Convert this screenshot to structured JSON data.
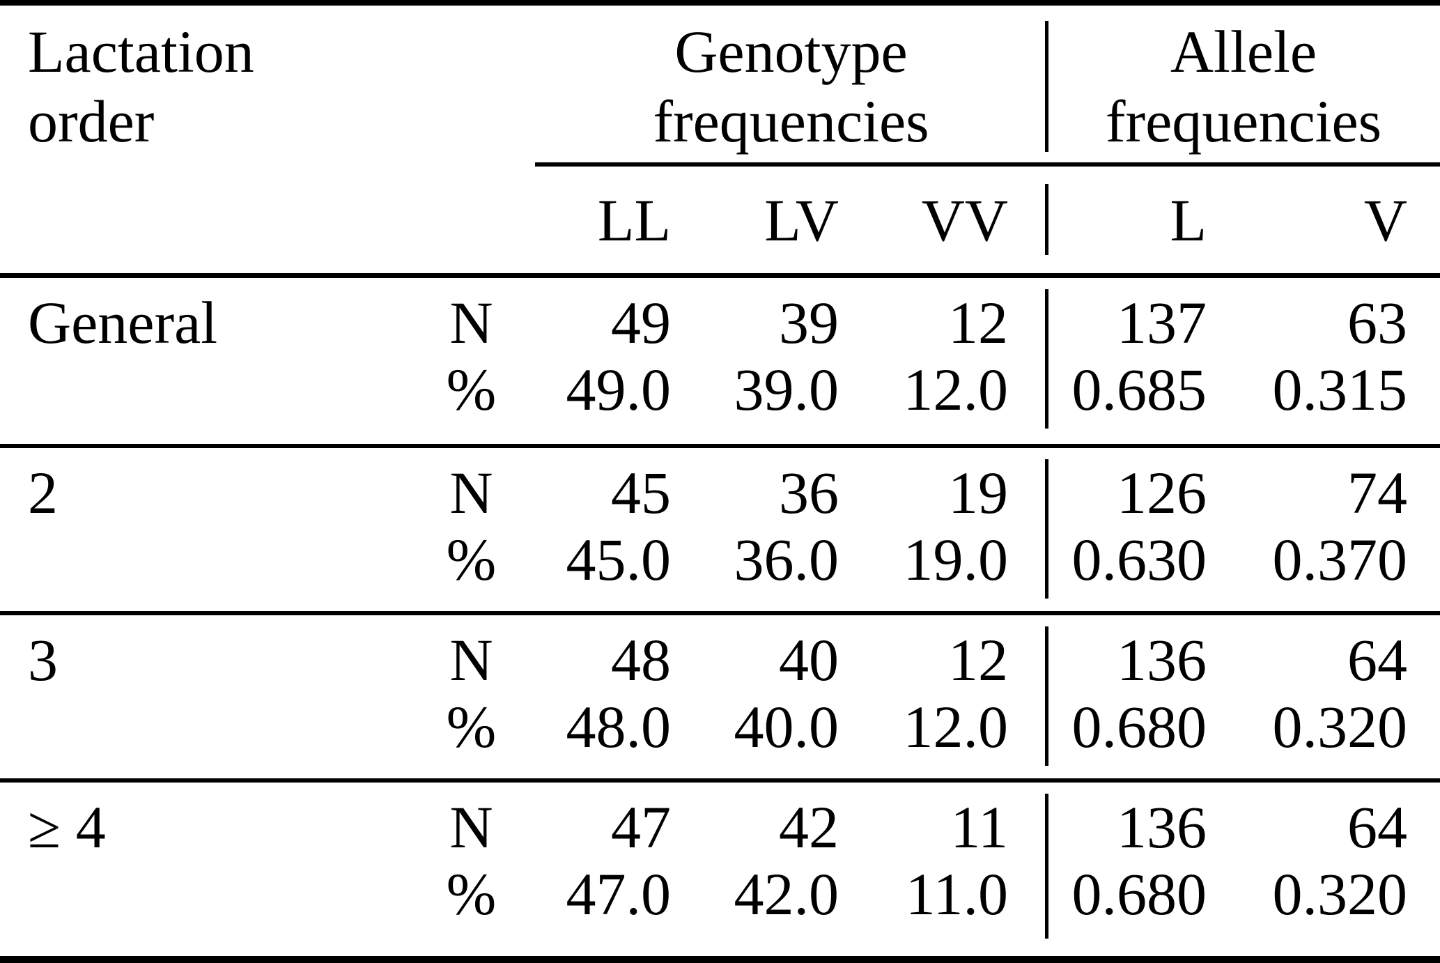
{
  "colors": {
    "text": "#000000",
    "background": "#ffffff",
    "rules": "#000000"
  },
  "table": {
    "stub_header": {
      "line1": "Lactation",
      "line2": "order"
    },
    "group_headers": {
      "genotype": {
        "line1": "Genotype",
        "line2": "frequencies"
      },
      "allele": {
        "line1": "Allele",
        "line2": "frequencies"
      }
    },
    "columns": {
      "genotype": [
        "LL",
        "LV",
        "VV"
      ],
      "allele": [
        "L",
        "V"
      ]
    },
    "stub_labels": {
      "n": "N",
      "pct": "%"
    },
    "rows": [
      {
        "label": "General",
        "n": [
          "49",
          "39",
          "12",
          "137",
          "63"
        ],
        "pct": [
          "49.0",
          "39.0",
          "12.0",
          "0.685",
          "0.315"
        ]
      },
      {
        "label": "2",
        "n": [
          "45",
          "36",
          "19",
          "126",
          "74"
        ],
        "pct": [
          "45.0",
          "36.0",
          "19.0",
          "0.630",
          "0.370"
        ]
      },
      {
        "label": "3",
        "n": [
          "48",
          "40",
          "12",
          "136",
          "64"
        ],
        "pct": [
          "48.0",
          "40.0",
          "12.0",
          "0.680",
          "0.320"
        ]
      },
      {
        "label": "≥ 4",
        "n": [
          "47",
          "42",
          "11",
          "136",
          "64"
        ],
        "pct": [
          "47.0",
          "42.0",
          "11.0",
          "0.680",
          "0.320"
        ]
      }
    ]
  }
}
